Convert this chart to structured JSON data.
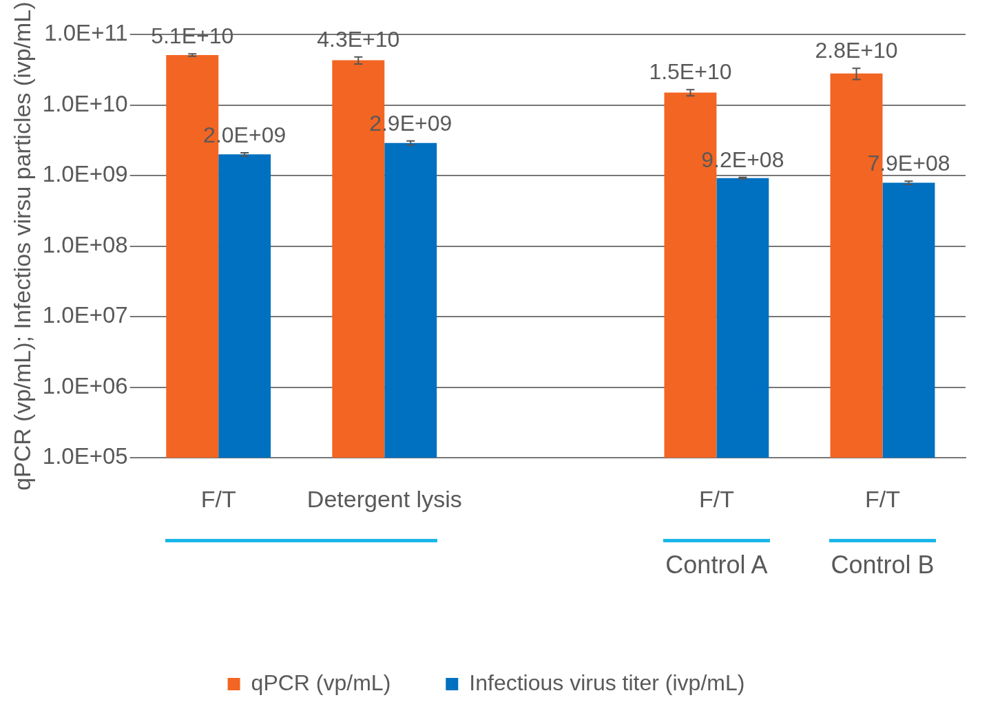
{
  "chart_data": {
    "type": "bar",
    "ylabel": "qPCR (vp/mL); Infectios virsu particles (ivp/mL)",
    "categories": [
      "F/T",
      "Detergent lysis",
      null,
      "F/T",
      "F/T"
    ],
    "series": [
      {
        "name": "qPCR (vp/mL)",
        "color": "#f26522",
        "values": [
          51000000000,
          43000000000,
          null,
          15000000000,
          28000000000
        ],
        "errors": [
          2000000000,
          5000000000,
          null,
          1500000000,
          5000000000
        ],
        "value_labels": [
          "5.1E+10",
          "4.3E+10",
          null,
          "1.5E+10",
          "2.8E+10"
        ]
      },
      {
        "name": "Infectious virus titer (ivp/mL)",
        "color": "#0070c0",
        "values": [
          2000000000,
          2900000000,
          null,
          920000000,
          790000000
        ],
        "errors": [
          100000000,
          200000000,
          null,
          20000000,
          40000000
        ],
        "value_labels": [
          "2.0E+09",
          "2.9E+09",
          null,
          "9.2E+08",
          "7.9E+08"
        ]
      }
    ],
    "log": "y",
    "ylim": [
      100000,
      100000000000
    ],
    "yticks": [
      {
        "value": 100000,
        "label": "1.0E+05"
      },
      {
        "value": 1000000,
        "label": "1.0E+06"
      },
      {
        "value": 10000000,
        "label": "1.0E+07"
      },
      {
        "value": 100000000,
        "label": "1.0E+08"
      },
      {
        "value": 1000000000,
        "label": "1.0E+09"
      },
      {
        "value": 10000000000,
        "label": "1.0E+10"
      },
      {
        "value": 100000000000,
        "label": "1.0E+11"
      }
    ],
    "grid": "y",
    "legend": "bottom",
    "annotations": [
      "Control A",
      "Control B"
    ]
  }
}
